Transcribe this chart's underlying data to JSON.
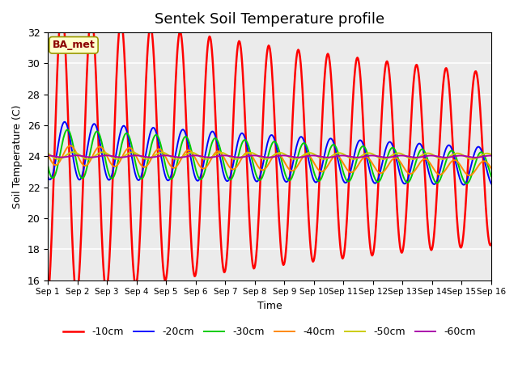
{
  "title": "Sentek Soil Temperature profile",
  "xlabel": "Time",
  "ylabel": "Soil Temperature (C)",
  "ylim": [
    16,
    32
  ],
  "yticks": [
    16,
    18,
    20,
    22,
    24,
    26,
    28,
    30,
    32
  ],
  "annotation": "BA_met",
  "legend_labels": [
    "-10cm",
    "-20cm",
    "-30cm",
    "-40cm",
    "-50cm",
    "-60cm"
  ],
  "legend_colors": [
    "#ff0000",
    "#0000ff",
    "#00cc00",
    "#ff8800",
    "#cccc00",
    "#aa00aa"
  ],
  "background_color": "#ebebeb",
  "n_days": 15,
  "n_points_per_day": 48
}
